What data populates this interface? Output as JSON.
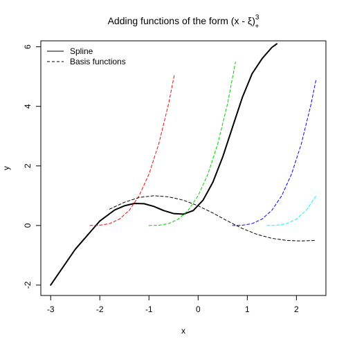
{
  "chart_data": {
    "type": "line",
    "title": {
      "prefix": "Adding functions of the form (x - ",
      "xi": "ξ",
      "close": ")",
      "subscript": "+",
      "superscript": "3"
    },
    "xlabel": "x",
    "ylabel": "y",
    "xlim": [
      -3.2,
      2.6
    ],
    "ylim": [
      -2.35,
      6.2
    ],
    "xticks": [
      -3,
      -2,
      -1,
      0,
      1,
      2
    ],
    "yticks": [
      -2,
      0,
      2,
      4,
      6
    ],
    "legend": {
      "position": "top-left",
      "entries": [
        {
          "label": "Spline",
          "style": "solid"
        },
        {
          "label": "Basis functions",
          "style": "dashed"
        }
      ]
    },
    "series": [
      {
        "style": "solid",
        "color": "#000000",
        "x": [
          -3.0,
          -2.5,
          -2.0,
          -1.7,
          -1.5,
          -1.3,
          -1.1,
          -0.9,
          -0.7,
          -0.5,
          -0.3,
          -0.1,
          0.1,
          0.3,
          0.5,
          0.7,
          0.9,
          1.1,
          1.3,
          1.5,
          1.6
        ],
        "y": [
          -2.0,
          -0.8,
          0.15,
          0.52,
          0.66,
          0.74,
          0.73,
          0.64,
          0.5,
          0.4,
          0.38,
          0.5,
          0.85,
          1.45,
          2.3,
          3.3,
          4.3,
          5.1,
          5.6,
          5.98,
          6.1
        ]
      },
      {
        "style": "dashed",
        "color": "#ff0000",
        "x": [
          -2.2,
          -2.0,
          -1.8,
          -1.6,
          -1.4,
          -1.2,
          -1.0,
          -0.8,
          -0.6,
          -0.48
        ],
        "y": [
          0.0,
          0.008,
          0.064,
          0.216,
          0.512,
          1.0,
          1.728,
          2.744,
          4.096,
          5.09
        ]
      },
      {
        "style": "dashed",
        "color": "#00cc00",
        "x": [
          -1.0,
          -0.8,
          -0.6,
          -0.4,
          -0.2,
          0.0,
          0.2,
          0.4,
          0.6,
          0.76
        ],
        "y": [
          0.0,
          0.008,
          0.064,
          0.216,
          0.512,
          1.0,
          1.728,
          2.744,
          4.096,
          5.49
        ]
      },
      {
        "style": "dashed",
        "color": "#0000ff",
        "x": [
          0.7,
          0.9,
          1.1,
          1.3,
          1.5,
          1.7,
          1.9,
          2.1,
          2.3,
          2.4
        ],
        "y": [
          0.0,
          0.008,
          0.064,
          0.216,
          0.512,
          1.0,
          1.728,
          2.744,
          4.096,
          4.91
        ]
      },
      {
        "style": "dashed",
        "color": "#00ffff",
        "x": [
          1.4,
          1.6,
          1.8,
          2.0,
          2.2,
          2.4
        ],
        "y": [
          0.0,
          0.008,
          0.064,
          0.216,
          0.512,
          1.0
        ]
      },
      {
        "style": "dashed",
        "color": "#000000",
        "x": [
          -1.8,
          -1.5,
          -1.2,
          -0.9,
          -0.6,
          -0.3,
          0.0,
          0.3,
          0.6,
          0.9,
          1.2,
          1.5,
          1.8,
          2.1,
          2.4
        ],
        "y": [
          0.55,
          0.78,
          0.94,
          1.0,
          0.96,
          0.85,
          0.66,
          0.42,
          0.15,
          -0.1,
          -0.3,
          -0.43,
          -0.5,
          -0.52,
          -0.5
        ]
      }
    ]
  }
}
